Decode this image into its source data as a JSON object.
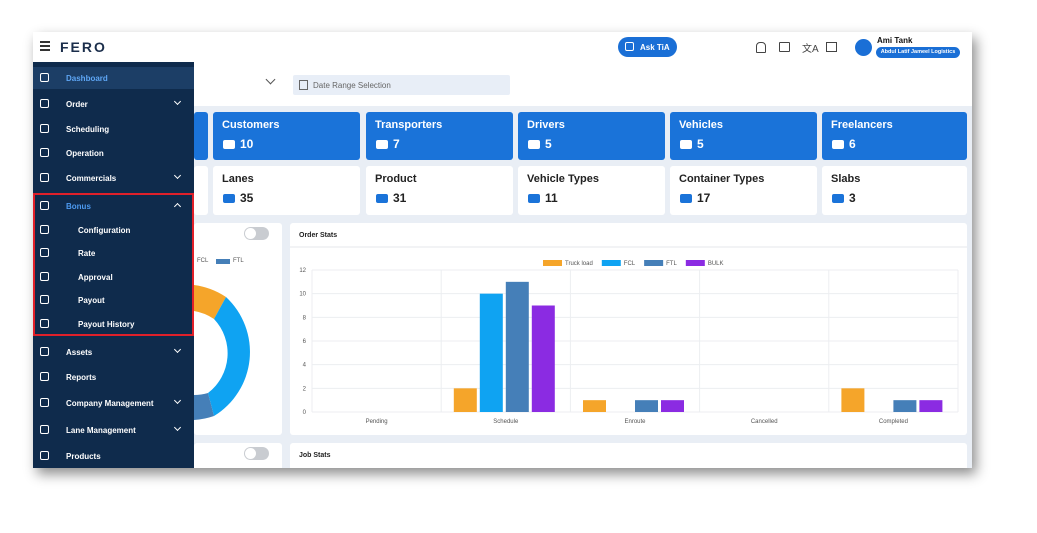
{
  "topbar": {
    "logo": "FERO",
    "ask_button": "Ask TiA",
    "user_name": "Ami Tank",
    "company": "Abdul Latif Jameel Logistics"
  },
  "sidebar": {
    "items": [
      {
        "label": "Dashboard"
      },
      {
        "label": "Order"
      },
      {
        "label": "Scheduling"
      },
      {
        "label": "Operation"
      },
      {
        "label": "Commercials"
      },
      {
        "label": "Bonus"
      },
      {
        "label": "Configuration"
      },
      {
        "label": "Rate"
      },
      {
        "label": "Approval"
      },
      {
        "label": "Payout"
      },
      {
        "label": "Payout History"
      },
      {
        "label": "Assets"
      },
      {
        "label": "Reports"
      },
      {
        "label": "Company Management"
      },
      {
        "label": "Lane Management"
      },
      {
        "label": "Products"
      }
    ]
  },
  "filters": {
    "date_range": "Date Range Selection"
  },
  "summary_cards": [
    {
      "label": "Customers",
      "value": 10
    },
    {
      "label": "Transporters",
      "value": 7
    },
    {
      "label": "Drivers",
      "value": 5
    },
    {
      "label": "Vehicles",
      "value": 5
    },
    {
      "label": "Freelancers",
      "value": 6
    }
  ],
  "detail_cards": [
    {
      "label": "Lanes",
      "value": 35
    },
    {
      "label": "Product",
      "value": 31
    },
    {
      "label": "Vehicle Types",
      "value": 11
    },
    {
      "label": "Container Types",
      "value": 17
    },
    {
      "label": "Slabs",
      "value": 3
    }
  ],
  "donut_panel": {
    "legend": [
      "FCL",
      "FTL"
    ]
  },
  "chart_data": {
    "type": "bar",
    "title": "Order Stats",
    "categories": [
      "Pending",
      "Schedule",
      "Enroute",
      "Cancelled",
      "Completed"
    ],
    "series": [
      {
        "name": "Truck load",
        "color": "#f5a52a",
        "values": [
          0,
          2,
          1,
          0,
          2
        ]
      },
      {
        "name": "FCL",
        "color": "#0fa3f2",
        "values": [
          0,
          10,
          0,
          0,
          0
        ]
      },
      {
        "name": "FTL",
        "color": "#457fb8",
        "values": [
          0,
          11,
          1,
          0,
          1
        ]
      },
      {
        "name": "BULK",
        "color": "#8b2be2",
        "values": [
          0,
          9,
          1,
          0,
          1
        ]
      }
    ],
    "ylim": [
      0,
      12
    ],
    "yticks": [
      0,
      2,
      4,
      6,
      8,
      10,
      12
    ],
    "grid": true
  },
  "job_stats": {
    "title": "Job Stats"
  }
}
